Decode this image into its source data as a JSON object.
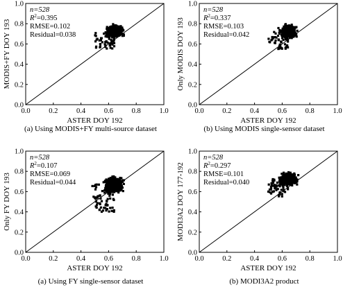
{
  "chart_data": [
    {
      "type": "scatter",
      "xlabel": "ASTER DOY 192",
      "ylabel": "MODIS+FY DOY 193",
      "caption": "(a) Using MODIS+FY multi-source dataset",
      "xlim": [
        0.0,
        1.0
      ],
      "ylim": [
        0.0,
        1.0
      ],
      "xticks": [
        "0.0",
        "0.2",
        "0.4",
        "0.6",
        "0.8",
        "1.0"
      ],
      "yticks": [
        "0.0",
        "0.2",
        "0.4",
        "0.6",
        "0.8",
        "1.0"
      ],
      "reference_line": "1:1",
      "stats": {
        "n": "n=528",
        "r2_prefix": "R",
        "r2_sup": "2",
        "r2_value": "=0.395",
        "rmse": "RMSE=0.102",
        "residual": "Residual=0.038"
      },
      "cluster": {
        "n": 528,
        "x_range": [
          0.5,
          0.71
        ],
        "y_range": [
          0.55,
          0.8
        ],
        "x_center": 0.645,
        "y_center": 0.725
      }
    },
    {
      "type": "scatter",
      "xlabel": "ASTER DOY 192",
      "ylabel": "Only MODIS DOY 193",
      "caption": "(b) Using MODIS single-sensor dataset",
      "xlim": [
        0.0,
        1.0
      ],
      "ylim": [
        0.0,
        1.0
      ],
      "xticks": [
        "0.0",
        "0.2",
        "0.4",
        "0.6",
        "0.8",
        "1.0"
      ],
      "yticks": [
        "0.0",
        "0.2",
        "0.4",
        "0.6",
        "0.8",
        "1.0"
      ],
      "reference_line": "1:1",
      "stats": {
        "n": "n=528",
        "r2_prefix": "R",
        "r2_sup": "2",
        "r2_value": "=0.337",
        "rmse": "RMSE=0.103",
        "residual": "Residual=0.042"
      },
      "cluster": {
        "n": 528,
        "x_range": [
          0.5,
          0.71
        ],
        "y_range": [
          0.55,
          0.82
        ],
        "x_center": 0.645,
        "y_center": 0.725
      }
    },
    {
      "type": "scatter",
      "xlabel": "ASTER DOY 192",
      "ylabel": "Only FY DOY 193",
      "caption": "(a) Using FY single-sensor dataset",
      "xlim": [
        0.0,
        1.0
      ],
      "ylim": [
        0.0,
        1.0
      ],
      "xticks": [
        "0.0",
        "0.2",
        "0.4",
        "0.6",
        "0.8",
        "1.0"
      ],
      "yticks": [
        "0.0",
        "0.2",
        "0.4",
        "0.6",
        "0.8",
        "1.0"
      ],
      "reference_line": "1:1",
      "stats": {
        "n": "n=528",
        "r2_prefix": "R",
        "r2_sup": "2",
        "r2_value": "=0.107",
        "rmse": "RMSE=0.069",
        "residual": "Residual=0.044"
      },
      "cluster": {
        "n": 528,
        "x_range": [
          0.48,
          0.71
        ],
        "y_range": [
          0.4,
          0.76
        ],
        "x_center": 0.64,
        "y_center": 0.67
      }
    },
    {
      "type": "scatter",
      "xlabel": "ASTER DOY 192",
      "ylabel": "MODI3A2 DOY 177-192",
      "caption": "(b) MODI3A2 product",
      "xlim": [
        0.0,
        1.0
      ],
      "ylim": [
        0.0,
        1.0
      ],
      "xticks": [
        "0.0",
        "0.2",
        "0.4",
        "0.6",
        "0.8",
        "1.0"
      ],
      "yticks": [
        "0.0",
        "0.2",
        "0.4",
        "0.6",
        "0.8",
        "1.0"
      ],
      "reference_line": "1:1",
      "stats": {
        "n": "n=528",
        "r2_prefix": "R",
        "r2_sup": "2",
        "r2_value": "=0.297",
        "rmse": "RMSE=0.101",
        "residual": "Residual=0.040"
      },
      "cluster": {
        "n": 528,
        "x_range": [
          0.5,
          0.72
        ],
        "y_range": [
          0.55,
          0.83
        ],
        "x_center": 0.645,
        "y_center": 0.725
      }
    }
  ]
}
